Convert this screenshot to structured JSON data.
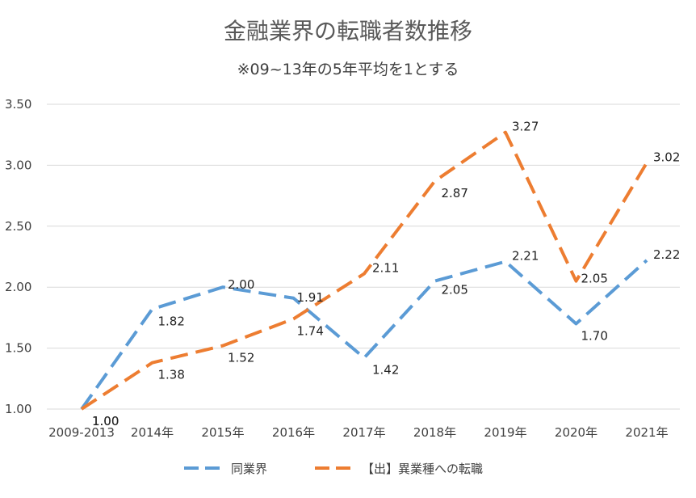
{
  "chart_data": {
    "type": "line",
    "title": "金融業界の転職者数推移",
    "subtitle": "※09~13年の5年平均を1とする",
    "categories": [
      "2009-2013",
      "2014年",
      "2015年",
      "2016年",
      "2017年",
      "2018年",
      "2019年",
      "2020年",
      "2021年"
    ],
    "ylim": [
      1.0,
      3.5
    ],
    "yticks": [
      "1.00",
      "1.50",
      "2.00",
      "2.50",
      "3.00",
      "3.50"
    ],
    "grid": true,
    "legend_position": "bottom",
    "series": [
      {
        "name": "同業界",
        "color": "#5b9bd5",
        "values": [
          1.0,
          1.82,
          2.0,
          1.91,
          1.42,
          2.05,
          2.21,
          1.7,
          2.22
        ],
        "labels": [
          "1.00",
          "1.82",
          "2.00",
          "1.91",
          "1.42",
          "2.05",
          "2.21",
          "1.70",
          "2.22"
        ]
      },
      {
        "name": "【出】異業種への転職",
        "color": "#ed7d31",
        "values": [
          1.0,
          1.38,
          1.52,
          1.74,
          2.11,
          2.87,
          3.27,
          2.05,
          3.02
        ],
        "labels": [
          "1.00",
          "1.38",
          "1.52",
          "1.74",
          "2.11",
          "2.87",
          "3.27",
          "2.05",
          "3.02"
        ]
      }
    ]
  }
}
